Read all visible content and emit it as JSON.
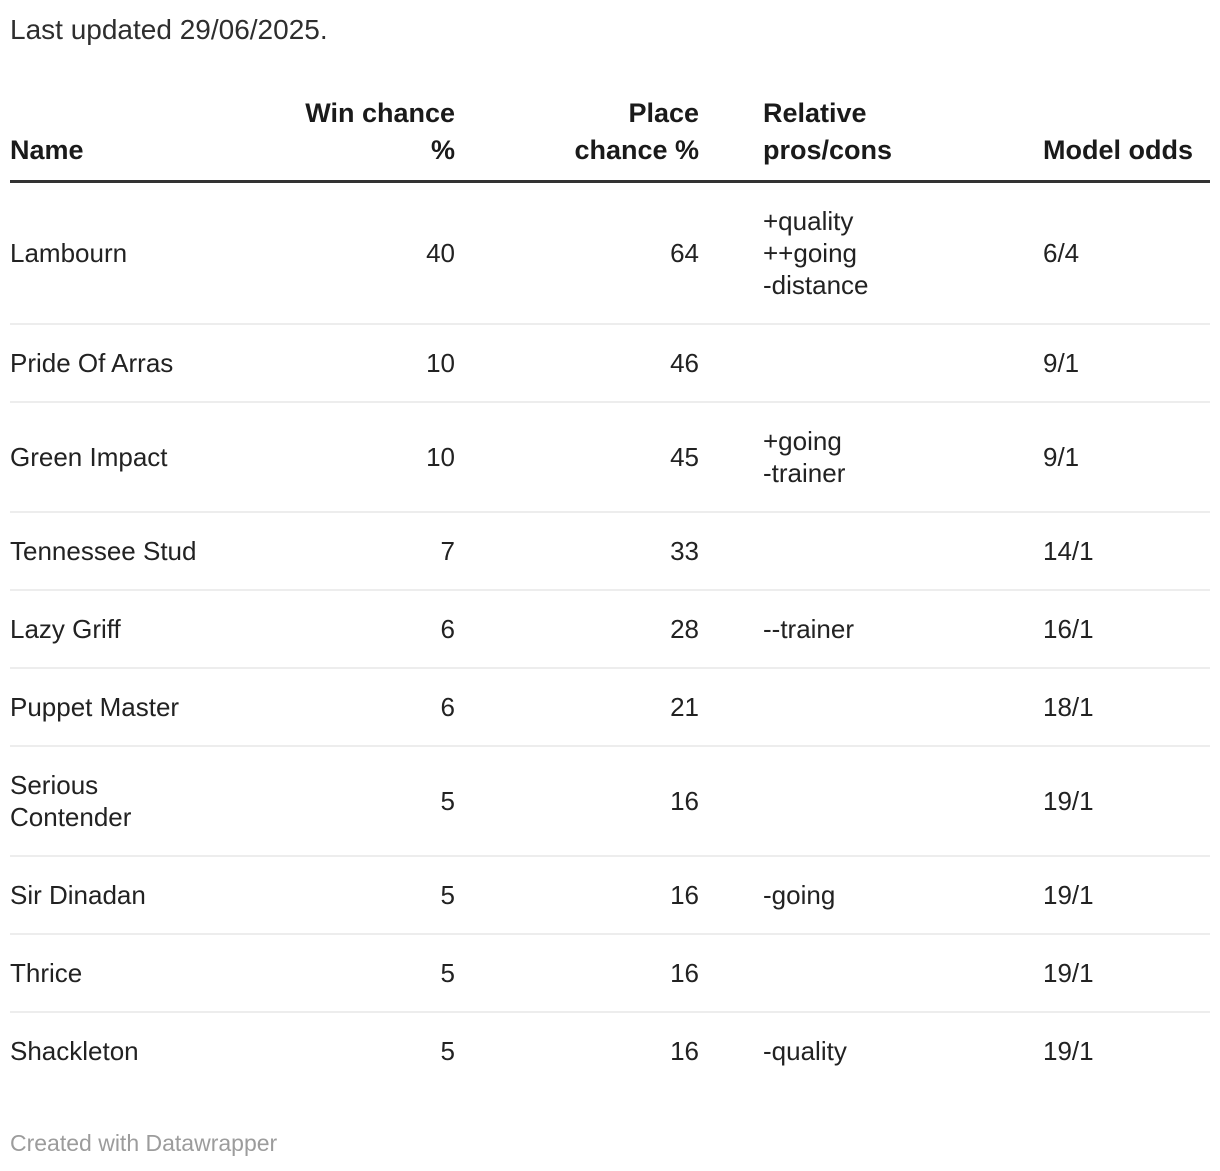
{
  "intro": "Last updated 29/06/2025.",
  "chart_data": {
    "type": "table",
    "title": "Last updated 29/06/2025.",
    "columns": [
      {
        "key": "name",
        "label": "Name",
        "align": "left"
      },
      {
        "key": "win",
        "label": "Win chance\n%",
        "align": "right"
      },
      {
        "key": "place",
        "label": "Place\nchance %",
        "align": "right"
      },
      {
        "key": "pros",
        "label": "Relative\npros/cons",
        "align": "left"
      },
      {
        "key": "odds",
        "label": "Model odds",
        "align": "left"
      }
    ],
    "rows": [
      {
        "name": "Lambourn",
        "win": "40",
        "place": "64",
        "pros": "+quality\n++going\n-distance",
        "odds": "6/4"
      },
      {
        "name": "Pride Of Arras",
        "win": "10",
        "place": "46",
        "pros": "",
        "odds": "9/1"
      },
      {
        "name": "Green Impact",
        "win": "10",
        "place": "45",
        "pros": "+going\n-trainer",
        "odds": "9/1"
      },
      {
        "name": "Tennessee Stud",
        "win": "7",
        "place": "33",
        "pros": "",
        "odds": "14/1"
      },
      {
        "name": "Lazy Griff",
        "win": "6",
        "place": "28",
        "pros": "--trainer",
        "odds": "16/1"
      },
      {
        "name": "Puppet Master",
        "win": "6",
        "place": "21",
        "pros": "",
        "odds": "18/1"
      },
      {
        "name": "Serious Contender",
        "win": "5",
        "place": "16",
        "pros": "",
        "odds": "19/1"
      },
      {
        "name": "Sir Dinadan",
        "win": "5",
        "place": "16",
        "pros": "-going",
        "odds": "19/1"
      },
      {
        "name": "Thrice",
        "win": "5",
        "place": "16",
        "pros": "",
        "odds": "19/1"
      },
      {
        "name": "Shackleton",
        "win": "5",
        "place": "16",
        "pros": "-quality",
        "odds": "19/1"
      }
    ]
  },
  "footer": {
    "attribution": "Created with Datawrapper"
  },
  "colors": {
    "text": "#222222",
    "header_text": "#1a1a1a",
    "header_border": "#333333",
    "row_border": "#ededed",
    "muted": "#9c9c9c",
    "background": "#ffffff"
  }
}
